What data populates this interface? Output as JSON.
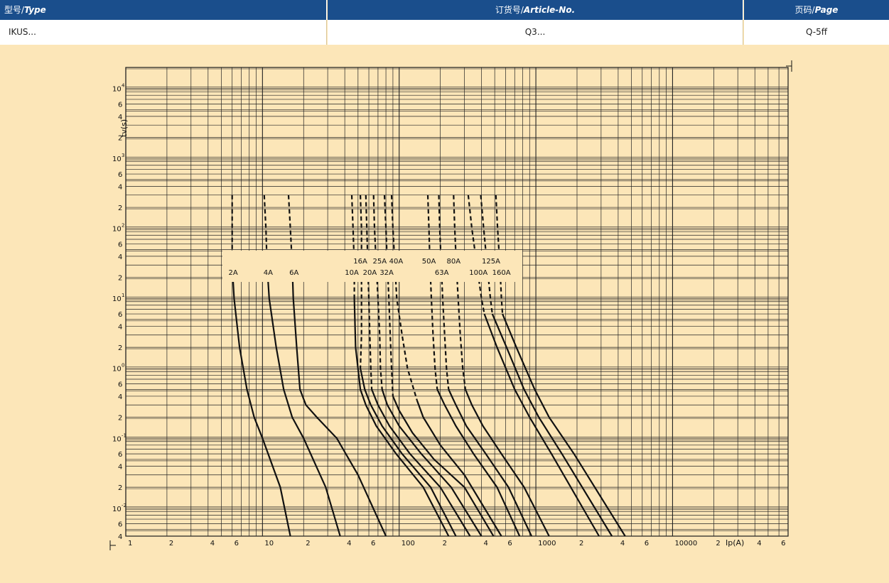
{
  "header": {
    "type_cn": "型号/",
    "type_en": "Type",
    "article_cn": "订货号/",
    "article_en": "Article-No.",
    "page_cn": "页码/",
    "page_en": "Page"
  },
  "row": {
    "type_value": "IKUS...",
    "article_value": "Q3...",
    "page_value": "Q-5ff"
  },
  "chart_data": {
    "type": "line",
    "xscale": "log",
    "yscale": "log",
    "xlim": [
      1,
      70000
    ],
    "ylim": [
      0.004,
      20000
    ],
    "xlabel": "Ip(A)",
    "ylabel": "tv(s)",
    "grid": true,
    "x_ticks": [
      {
        "v": 1,
        "l": "1"
      },
      {
        "v": 2,
        "l": "2"
      },
      {
        "v": 4,
        "l": "4"
      },
      {
        "v": 6,
        "l": "6"
      },
      {
        "v": 10,
        "l": "10"
      },
      {
        "v": 20,
        "l": "2"
      },
      {
        "v": 40,
        "l": "4"
      },
      {
        "v": 60,
        "l": "6"
      },
      {
        "v": 100,
        "l": "100"
      },
      {
        "v": 200,
        "l": "2"
      },
      {
        "v": 400,
        "l": "4"
      },
      {
        "v": 600,
        "l": "6"
      },
      {
        "v": 1000,
        "l": "1000"
      },
      {
        "v": 2000,
        "l": "2"
      },
      {
        "v": 4000,
        "l": "4"
      },
      {
        "v": 6000,
        "l": "6"
      },
      {
        "v": 10000,
        "l": "10000"
      },
      {
        "v": 20000,
        "l": "2"
      },
      {
        "v": 40000,
        "l": "4"
      },
      {
        "v": 60000,
        "l": "6"
      }
    ],
    "y_ticks": [
      {
        "v": 0.004,
        "m": "4",
        "e": ""
      },
      {
        "v": 0.006,
        "m": "6",
        "e": ""
      },
      {
        "v": 0.01,
        "m": "10",
        "e": "-2"
      },
      {
        "v": 0.02,
        "m": "2",
        "e": ""
      },
      {
        "v": 0.04,
        "m": "4",
        "e": ""
      },
      {
        "v": 0.06,
        "m": "6",
        "e": ""
      },
      {
        "v": 0.1,
        "m": "10",
        "e": "-1"
      },
      {
        "v": 0.2,
        "m": "2",
        "e": ""
      },
      {
        "v": 0.4,
        "m": "4",
        "e": ""
      },
      {
        "v": 0.6,
        "m": "6",
        "e": ""
      },
      {
        "v": 1,
        "m": "10",
        "e": "0"
      },
      {
        "v": 2,
        "m": "2",
        "e": ""
      },
      {
        "v": 4,
        "m": "4",
        "e": ""
      },
      {
        "v": 6,
        "m": "6",
        "e": ""
      },
      {
        "v": 10,
        "m": "10",
        "e": "1"
      },
      {
        "v": 20,
        "m": "2",
        "e": ""
      },
      {
        "v": 40,
        "m": "4",
        "e": ""
      },
      {
        "v": 60,
        "m": "6",
        "e": ""
      },
      {
        "v": 100,
        "m": "10",
        "e": "2"
      },
      {
        "v": 200,
        "m": "2",
        "e": ""
      },
      {
        "v": 400,
        "m": "4",
        "e": ""
      },
      {
        "v": 600,
        "m": "6",
        "e": ""
      },
      {
        "v": 1000,
        "m": "10",
        "e": "3"
      },
      {
        "v": 2000,
        "m": "2",
        "e": ""
      },
      {
        "v": 4000,
        "m": "4",
        "e": ""
      },
      {
        "v": 6000,
        "m": "6",
        "e": ""
      },
      {
        "v": 10000,
        "m": "10",
        "e": "4"
      }
    ],
    "series": [
      {
        "name": "2A",
        "solid": [
          [
            6.0,
            30
          ],
          [
            6.2,
            10
          ],
          [
            6.8,
            2
          ],
          [
            7.7,
            0.5
          ],
          [
            8.7,
            0.2
          ],
          [
            10,
            0.1
          ],
          [
            13.5,
            0.02
          ],
          [
            16,
            0.004
          ]
        ],
        "dashed": [
          [
            6.0,
            300
          ],
          [
            6.0,
            30
          ]
        ]
      },
      {
        "name": "4A",
        "solid": [
          [
            10.8,
            30
          ],
          [
            11.2,
            10
          ],
          [
            12.6,
            2
          ],
          [
            14.3,
            0.5
          ],
          [
            16.5,
            0.2
          ],
          [
            20,
            0.1
          ],
          [
            29,
            0.02
          ],
          [
            37,
            0.004
          ]
        ],
        "dashed": [
          [
            10.3,
            300
          ],
          [
            10.6,
            100
          ],
          [
            10.8,
            30
          ]
        ]
      },
      {
        "name": "6A",
        "solid": [
          [
            16.5,
            30
          ],
          [
            16.8,
            10
          ],
          [
            17.8,
            2
          ],
          [
            18.8,
            0.5
          ],
          [
            20.8,
            0.3
          ],
          [
            25,
            0.2
          ],
          [
            35,
            0.1
          ],
          [
            50,
            0.03
          ],
          [
            80,
            0.004
          ]
        ],
        "dashed": [
          [
            15.5,
            300
          ],
          [
            16.0,
            100
          ],
          [
            16.5,
            30
          ]
        ]
      },
      {
        "name": "10A",
        "solid": [
          [
            47,
            10
          ],
          [
            48,
            2
          ],
          [
            52,
            0.5
          ],
          [
            57,
            0.3
          ],
          [
            68,
            0.15
          ],
          [
            95,
            0.06
          ],
          [
            150,
            0.02
          ],
          [
            230,
            0.004
          ]
        ],
        "dashed": [
          [
            45,
            300
          ],
          [
            46,
            100
          ],
          [
            47,
            30
          ],
          [
            47,
            10
          ]
        ]
      },
      {
        "name": "16A",
        "solid": [
          [
            52,
            1
          ],
          [
            56,
            0.5
          ],
          [
            62,
            0.3
          ],
          [
            75,
            0.15
          ],
          [
            105,
            0.06
          ],
          [
            170,
            0.02
          ],
          [
            260,
            0.004
          ]
        ],
        "dashed": [
          [
            52,
            300
          ],
          [
            53,
            100
          ],
          [
            53,
            30
          ],
          [
            53,
            10
          ],
          [
            53,
            3
          ],
          [
            52,
            1
          ]
        ]
      },
      {
        "name": "20A",
        "solid": [
          [
            63,
            0.5
          ],
          [
            70,
            0.3
          ],
          [
            85,
            0.15
          ],
          [
            120,
            0.06
          ],
          [
            200,
            0.02
          ],
          [
            330,
            0.004
          ]
        ],
        "dashed": [
          [
            57,
            300
          ],
          [
            58,
            100
          ],
          [
            59,
            30
          ],
          [
            60,
            10
          ],
          [
            61,
            3
          ],
          [
            62,
            1
          ],
          [
            63,
            0.5
          ]
        ]
      },
      {
        "name": "25A",
        "solid": [
          [
            75,
            0.5
          ],
          [
            82,
            0.3
          ],
          [
            100,
            0.15
          ],
          [
            145,
            0.06
          ],
          [
            240,
            0.02
          ],
          [
            400,
            0.004
          ]
        ],
        "dashed": [
          [
            65,
            300
          ],
          [
            66,
            100
          ],
          [
            68,
            30
          ],
          [
            70,
            10
          ],
          [
            72,
            3
          ],
          [
            73,
            1
          ],
          [
            75,
            0.5
          ]
        ]
      },
      {
        "name": "32A",
        "solid": [
          [
            90,
            0.4
          ],
          [
            100,
            0.25
          ],
          [
            125,
            0.12
          ],
          [
            180,
            0.05
          ],
          [
            300,
            0.02
          ],
          [
            490,
            0.004
          ]
        ],
        "dashed": [
          [
            78,
            300
          ],
          [
            80,
            100
          ],
          [
            82,
            30
          ],
          [
            84,
            10
          ],
          [
            86,
            3
          ],
          [
            88,
            1
          ],
          [
            90,
            0.4
          ]
        ]
      },
      {
        "name": "40A",
        "solid": [
          [
            135,
            0.35
          ],
          [
            150,
            0.2
          ],
          [
            200,
            0.08
          ],
          [
            300,
            0.03
          ],
          [
            560,
            0.004
          ]
        ],
        "dashed": [
          [
            88,
            300
          ],
          [
            90,
            100
          ],
          [
            93,
            30
          ],
          [
            96,
            10
          ],
          [
            105,
            3
          ],
          [
            115,
            1
          ],
          [
            135,
            0.35
          ]
        ]
      },
      {
        "name": "50A",
        "solid": [
          [
            190,
            0.5
          ],
          [
            215,
            0.3
          ],
          [
            260,
            0.15
          ],
          [
            350,
            0.06
          ],
          [
            520,
            0.02
          ],
          [
            760,
            0.004
          ]
        ],
        "dashed": [
          [
            162,
            300
          ],
          [
            165,
            100
          ],
          [
            168,
            30
          ],
          [
            172,
            10
          ],
          [
            177,
            3
          ],
          [
            183,
            1
          ],
          [
            190,
            0.5
          ]
        ]
      },
      {
        "name": "63A",
        "solid": [
          [
            230,
            0.5
          ],
          [
            260,
            0.3
          ],
          [
            310,
            0.15
          ],
          [
            430,
            0.06
          ],
          [
            630,
            0.02
          ],
          [
            930,
            0.004
          ]
        ],
        "dashed": [
          [
            195,
            300
          ],
          [
            198,
            100
          ],
          [
            203,
            30
          ],
          [
            208,
            10
          ],
          [
            215,
            3
          ],
          [
            222,
            1
          ],
          [
            230,
            0.5
          ]
        ]
      },
      {
        "name": "80A",
        "solid": [
          [
            305,
            0.5
          ],
          [
            340,
            0.3
          ],
          [
            410,
            0.15
          ],
          [
            560,
            0.06
          ],
          [
            820,
            0.02
          ],
          [
            1250,
            0.004
          ]
        ],
        "dashed": [
          [
            250,
            300
          ],
          [
            255,
            100
          ],
          [
            262,
            30
          ],
          [
            270,
            10
          ],
          [
            280,
            3
          ],
          [
            292,
            1
          ],
          [
            305,
            0.5
          ]
        ]
      },
      {
        "name": "100A",
        "solid": [
          [
            420,
            6
          ],
          [
            520,
            2
          ],
          [
            700,
            0.5
          ],
          [
            900,
            0.2
          ],
          [
            1300,
            0.06
          ],
          [
            2900,
            0.004
          ]
        ],
        "dashed": [
          [
            320,
            300
          ],
          [
            340,
            100
          ],
          [
            370,
            30
          ],
          [
            400,
            10
          ],
          [
            420,
            6
          ]
        ]
      },
      {
        "name": "125A",
        "solid": [
          [
            480,
            6
          ],
          [
            610,
            2
          ],
          [
            820,
            0.5
          ],
          [
            1050,
            0.2
          ],
          [
            1550,
            0.06
          ],
          [
            3600,
            0.004
          ]
        ],
        "dashed": [
          [
            395,
            300
          ],
          [
            415,
            100
          ],
          [
            440,
            30
          ],
          [
            465,
            10
          ],
          [
            480,
            6
          ]
        ]
      },
      {
        "name": "160A",
        "solid": [
          [
            570,
            6
          ],
          [
            720,
            2
          ],
          [
            980,
            0.5
          ],
          [
            1250,
            0.2
          ],
          [
            1900,
            0.06
          ],
          [
            4500,
            0.004
          ]
        ],
        "dashed": [
          [
            510,
            300
          ],
          [
            525,
            100
          ],
          [
            545,
            30
          ],
          [
            560,
            10
          ],
          [
            570,
            6
          ]
        ]
      }
    ],
    "labels": {
      "row1": [
        "16A",
        "25A",
        "40A",
        "50A",
        "80A",
        "125A"
      ],
      "row2": [
        "2A",
        "4A",
        "6A",
        "10A",
        "20A",
        "32A",
        "63A",
        "100A",
        "160A"
      ]
    },
    "label_positions": {
      "16A": 52,
      "25A": 72,
      "40A": 95,
      "50A": 165,
      "80A": 250,
      "125A": 470,
      "2A": 6.1,
      "4A": 11.0,
      "6A": 17.0,
      "10A": 45,
      "20A": 61,
      "32A": 81,
      "63A": 205,
      "100A": 380,
      "160A": 560
    }
  }
}
